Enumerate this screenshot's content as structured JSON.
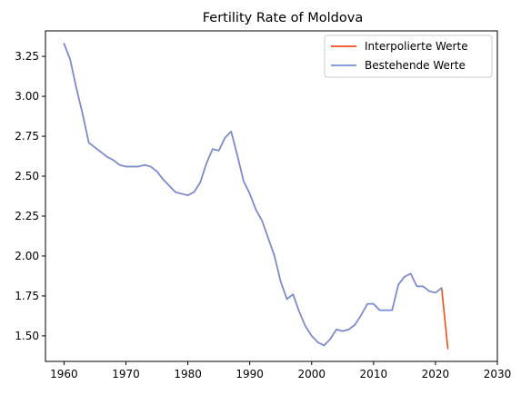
{
  "chart_data": {
    "type": "line",
    "title": "Fertility Rate of Moldova",
    "xlabel": "",
    "ylabel": "",
    "xlim": [
      1957,
      2030
    ],
    "ylim": [
      1.34,
      3.41
    ],
    "xticks": [
      1960,
      1970,
      1980,
      1990,
      2000,
      2010,
      2020,
      2030
    ],
    "yticks": [
      1.5,
      1.75,
      2.0,
      2.25,
      2.5,
      2.75,
      3.0,
      3.25
    ],
    "xtick_labels": [
      "1960",
      "1970",
      "1980",
      "1990",
      "2000",
      "2010",
      "2020",
      "2030"
    ],
    "ytick_labels": [
      "1.50",
      "1.75",
      "2.00",
      "2.25",
      "2.50",
      "2.75",
      "3.00",
      "3.25"
    ],
    "grid": false,
    "legend_position": "top-right",
    "colors": {
      "interpolated": "#f04e1c",
      "existing": "#6f8fdc",
      "axes": "#000000"
    },
    "series": [
      {
        "name": "Interpolierte Werte",
        "color": "#f04e1c",
        "x": [
          1960,
          1961,
          1962,
          1963,
          1964,
          1965,
          1966,
          1967,
          1968,
          1969,
          1970,
          1971,
          1972,
          1973,
          1974,
          1975,
          1976,
          1977,
          1978,
          1979,
          1980,
          1981,
          1982,
          1983,
          1984,
          1985,
          1986,
          1987,
          1988,
          1989,
          1990,
          1991,
          1992,
          1993,
          1994,
          1995,
          1996,
          1997,
          1998,
          1999,
          2000,
          2001,
          2002,
          2003,
          2004,
          2005,
          2006,
          2007,
          2008,
          2009,
          2010,
          2011,
          2012,
          2013,
          2014,
          2015,
          2016,
          2017,
          2018,
          2019,
          2020,
          2021,
          2022
        ],
        "values": [
          3.33,
          3.23,
          3.05,
          2.89,
          2.71,
          2.68,
          2.65,
          2.62,
          2.6,
          2.57,
          2.56,
          2.56,
          2.56,
          2.57,
          2.56,
          2.53,
          2.48,
          2.44,
          2.4,
          2.39,
          2.38,
          2.4,
          2.46,
          2.58,
          2.67,
          2.66,
          2.74,
          2.78,
          2.63,
          2.47,
          2.39,
          2.29,
          2.22,
          2.11,
          2.0,
          1.84,
          1.73,
          1.76,
          1.65,
          1.56,
          1.5,
          1.46,
          1.44,
          1.48,
          1.54,
          1.53,
          1.54,
          1.57,
          1.63,
          1.7,
          1.7,
          1.66,
          1.66,
          1.66,
          1.82,
          1.87,
          1.89,
          1.81,
          1.81,
          1.78,
          1.77,
          1.8,
          1.42
        ]
      },
      {
        "name": "Bestehende Werte",
        "color": "#6f8fdc",
        "x": [
          1960,
          1961,
          1962,
          1963,
          1964,
          1965,
          1966,
          1967,
          1968,
          1969,
          1970,
          1971,
          1972,
          1973,
          1974,
          1975,
          1976,
          1977,
          1978,
          1979,
          1980,
          1981,
          1982,
          1983,
          1984,
          1985,
          1986,
          1987,
          1988,
          1989,
          1990,
          1991,
          1992,
          1993,
          1994,
          1995,
          1996,
          1997,
          1998,
          1999,
          2000,
          2001,
          2002,
          2003,
          2004,
          2005,
          2006,
          2007,
          2008,
          2009,
          2010,
          2011,
          2012,
          2013,
          2014,
          2015,
          2016,
          2017,
          2018,
          2019,
          2020,
          2021
        ],
        "values": [
          3.33,
          3.23,
          3.05,
          2.89,
          2.71,
          2.68,
          2.65,
          2.62,
          2.6,
          2.57,
          2.56,
          2.56,
          2.56,
          2.57,
          2.56,
          2.53,
          2.48,
          2.44,
          2.4,
          2.39,
          2.38,
          2.4,
          2.46,
          2.58,
          2.67,
          2.66,
          2.74,
          2.78,
          2.63,
          2.47,
          2.39,
          2.29,
          2.22,
          2.11,
          2.0,
          1.84,
          1.73,
          1.76,
          1.65,
          1.56,
          1.5,
          1.46,
          1.44,
          1.48,
          1.54,
          1.53,
          1.54,
          1.57,
          1.63,
          1.7,
          1.7,
          1.66,
          1.66,
          1.66,
          1.82,
          1.87,
          1.89,
          1.81,
          1.81,
          1.78,
          1.77,
          1.8
        ]
      }
    ]
  }
}
